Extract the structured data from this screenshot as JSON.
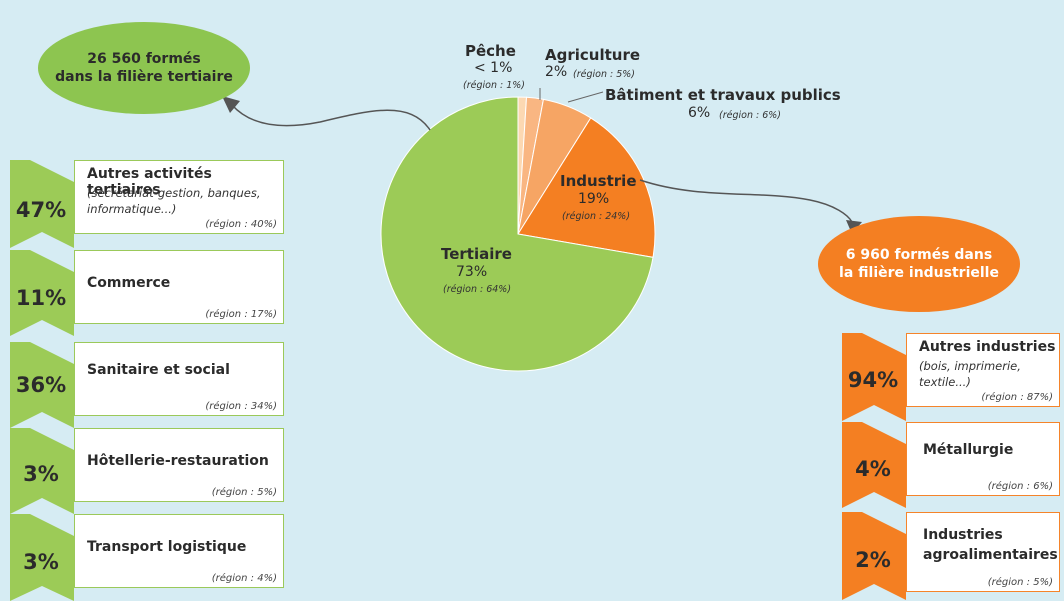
{
  "chart_data": {
    "type": "pie",
    "slices": [
      {
        "name": "Pêche",
        "pct_label": "< 1%",
        "region": "(région : 1%)",
        "value": 1,
        "color": "#fcd8b2"
      },
      {
        "name": "Agriculture",
        "pct_label": "2%",
        "region": "(région : 5%)",
        "value": 2,
        "color": "#f9b682"
      },
      {
        "name": "Bâtiment et travaux publics",
        "pct_label": "6%",
        "region": "(région : 6%)",
        "value": 6,
        "color": "#f6a564"
      },
      {
        "name": "Industrie",
        "pct_label": "19%",
        "region": "(région : 24%)",
        "value": 19,
        "color": "#f47f22"
      },
      {
        "name": "Tertiaire",
        "pct_label": "73%",
        "region": "(région : 64%)",
        "value": 73,
        "color": "#9ccb57"
      }
    ]
  },
  "tertiary": {
    "summary": "26 560 formés dans la filière tertiaire",
    "summary_lines": [
      "26 560 formés",
      "dans la filière tertiaire"
    ],
    "items": [
      {
        "pct": "47%",
        "title": "Autres activités tertiaires",
        "sub": [
          "(secrétariat-gestion, banques,",
          "informatique...)"
        ],
        "region": "(région : 40%)"
      },
      {
        "pct": "11%",
        "title": "Commerce",
        "sub": [],
        "region": "(région : 17%)"
      },
      {
        "pct": "36%",
        "title": "Sanitaire et social",
        "sub": [],
        "region": "(région : 34%)"
      },
      {
        "pct": "3%",
        "title": "Hôtellerie-restauration",
        "sub": [],
        "region": "(région : 5%)"
      },
      {
        "pct": "3%",
        "title": "Transport logistique",
        "sub": [],
        "region": "(région : 4%)"
      }
    ]
  },
  "industrial": {
    "summary_lines": [
      "6 960 formés dans",
      "la filière industrielle"
    ],
    "items": [
      {
        "pct": "94%",
        "title": "Autres industries",
        "sub": [
          "(bois, imprimerie,",
          "textile...)"
        ],
        "region": "(région : 87%)"
      },
      {
        "pct": "4%",
        "title": "Métallurgie",
        "sub": [],
        "region": "(région : 6%)"
      },
      {
        "pct": "2%",
        "title": "Industries",
        "title2": "agroalimentaires",
        "sub": [],
        "region": "(région : 5%)"
      }
    ]
  },
  "colors": {
    "green": "#8dc550",
    "green_border": "#9bc95a",
    "orange": "#f47f22",
    "background": "#d6ecf3"
  }
}
